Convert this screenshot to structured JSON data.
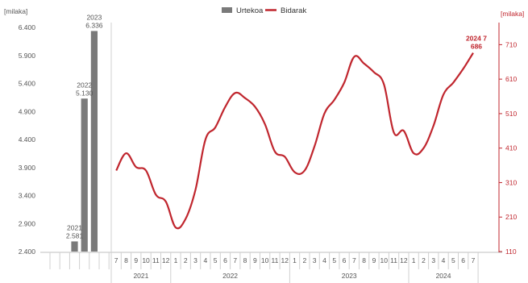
{
  "chart_data": {
    "type": "bar+line",
    "legend": [
      {
        "label": "Urtekoa",
        "color": "#7a7a7a",
        "kind": "bar"
      },
      {
        "label": "Bidarak",
        "color": "#c0262e",
        "kind": "line"
      }
    ],
    "legend_position": "top-center",
    "left_axis": {
      "unit": "[milaka]",
      "ylim": [
        2400,
        6400
      ],
      "ticks": [
        "6.400",
        "5.900",
        "5.400",
        "4.900",
        "4.400",
        "3.900",
        "3.400",
        "2.900",
        "2.400"
      ],
      "tick_values": [
        6400,
        5900,
        5400,
        4900,
        4400,
        3900,
        3400,
        2900,
        2400
      ]
    },
    "right_axis": {
      "unit": "[milaka]",
      "ylim": [
        110,
        760
      ],
      "ticks": [
        "710",
        "610",
        "510",
        "410",
        "310",
        "210",
        "110"
      ],
      "tick_values": [
        710,
        610,
        510,
        410,
        310,
        210,
        110
      ]
    },
    "bars": {
      "series": "Urtekoa",
      "slots": 6,
      "items": [
        {
          "slot": 2,
          "year": "2021",
          "value": 2581,
          "label": "2.581"
        },
        {
          "slot": 3,
          "year": "2022",
          "value": 5130,
          "label": "5.130"
        },
        {
          "slot": 4,
          "year": "2023",
          "value": 6336,
          "label": "6.336"
        }
      ]
    },
    "line": {
      "series": "Bidarak",
      "months": [
        "7",
        "8",
        "9",
        "10",
        "11",
        "12",
        "1",
        "2",
        "3",
        "4",
        "5",
        "6",
        "7",
        "8",
        "9",
        "10",
        "11",
        "12",
        "1",
        "2",
        "3",
        "4",
        "5",
        "6",
        "7",
        "8",
        "9",
        "10",
        "11",
        "12",
        "1",
        "2",
        "3",
        "4",
        "5",
        "6",
        "7"
      ],
      "values": [
        345,
        395,
        355,
        345,
        275,
        255,
        180,
        205,
        290,
        435,
        470,
        530,
        570,
        555,
        530,
        480,
        400,
        385,
        340,
        345,
        415,
        510,
        550,
        600,
        675,
        655,
        630,
        595,
        455,
        460,
        395,
        410,
        475,
        565,
        600,
        640,
        686
      ],
      "end_label": {
        "period": "2024 7",
        "value": "686"
      }
    },
    "year_groups": [
      {
        "label": "2021",
        "start": 0,
        "count": 6
      },
      {
        "label": "2022",
        "start": 6,
        "count": 12
      },
      {
        "label": "2023",
        "start": 18,
        "count": 12
      },
      {
        "label": "2024",
        "start": 30,
        "count": 7
      }
    ],
    "grid": false
  }
}
